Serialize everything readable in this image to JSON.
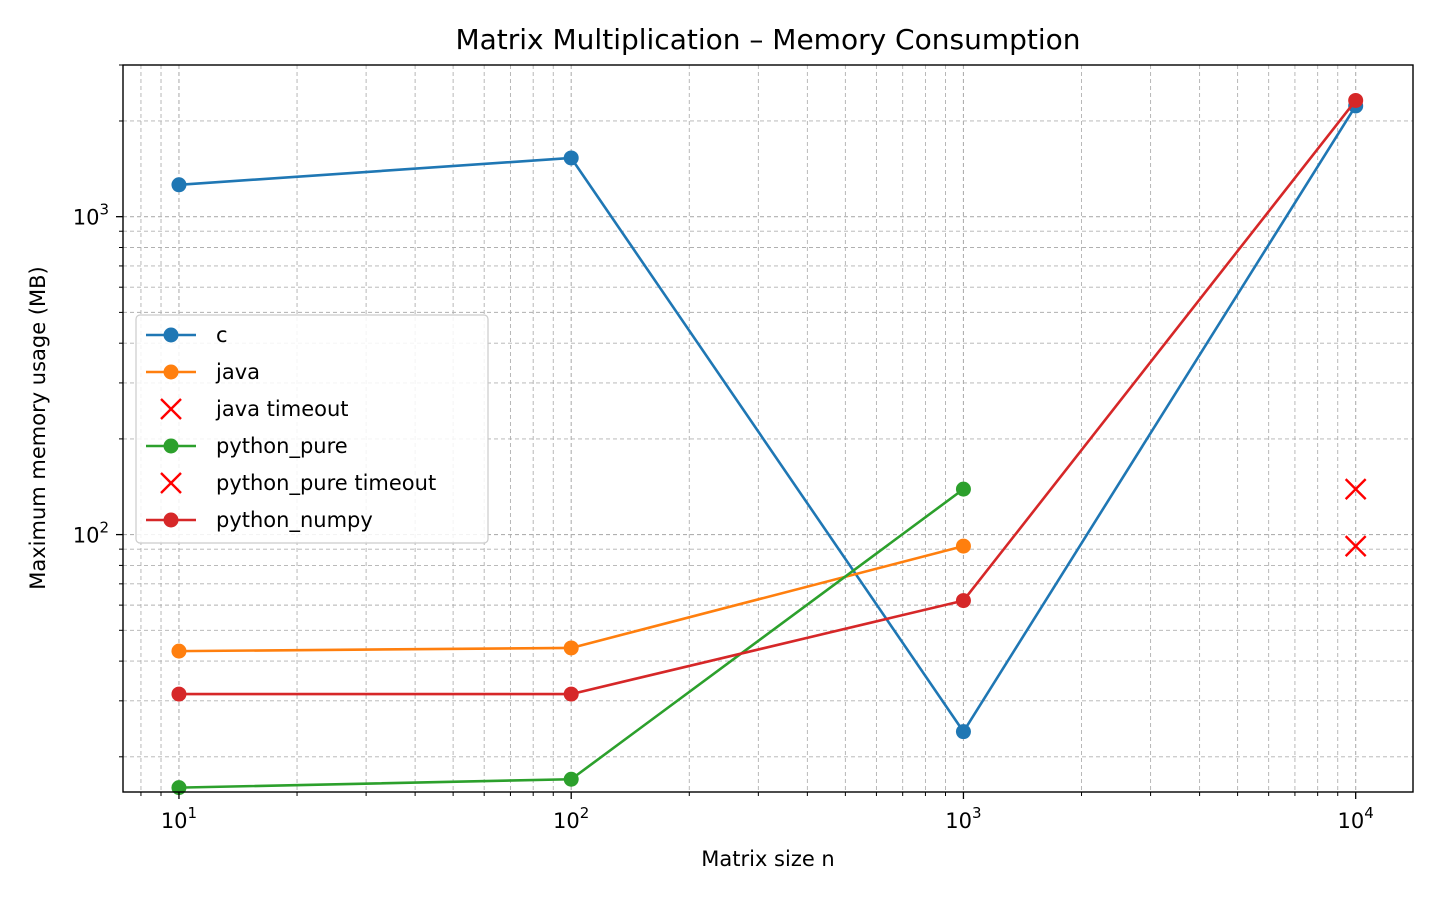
{
  "chart_data": {
    "type": "line",
    "title": "Matrix Multiplication – Memory Consumption",
    "xlabel": "Matrix size n",
    "ylabel": "Maximum memory usage (MB)",
    "x_scale": "log",
    "y_scale": "log",
    "xlim": [
      7.2,
      14000
    ],
    "ylim": [
      15.5,
      3000
    ],
    "grid": "both major and minor, dashed",
    "legend_position": "center-left",
    "x_ticks": [
      {
        "value": 10,
        "base": "10",
        "exp": "1"
      },
      {
        "value": 100,
        "base": "10",
        "exp": "2"
      },
      {
        "value": 1000,
        "base": "10",
        "exp": "3"
      },
      {
        "value": 10000,
        "base": "10",
        "exp": "4"
      }
    ],
    "y_ticks": [
      {
        "value": 100,
        "base": "10",
        "exp": "2"
      },
      {
        "value": 1000,
        "base": "10",
        "exp": "3"
      }
    ],
    "series": [
      {
        "name": "c",
        "kind": "line",
        "color": "#1f77b4",
        "x": [
          10,
          100,
          1000,
          10000
        ],
        "y": [
          1260,
          1530,
          24,
          2230
        ]
      },
      {
        "name": "java",
        "kind": "line",
        "color": "#ff7f0e",
        "x": [
          10,
          100,
          1000
        ],
        "y": [
          43,
          44,
          92
        ]
      },
      {
        "name": "java timeout",
        "kind": "timeout",
        "color": "#ff0000",
        "x": [
          10000
        ],
        "y": [
          92
        ]
      },
      {
        "name": "python_pure",
        "kind": "line",
        "color": "#2ca02c",
        "x": [
          10,
          100,
          1000
        ],
        "y": [
          16,
          17,
          139
        ]
      },
      {
        "name": "python_pure timeout",
        "kind": "timeout",
        "color": "#ff0000",
        "x": [
          10000
        ],
        "y": [
          139
        ]
      },
      {
        "name": "python_numpy",
        "kind": "line",
        "color": "#d62728",
        "x": [
          10,
          100,
          1000,
          10000
        ],
        "y": [
          31.5,
          31.5,
          62,
          2320
        ]
      }
    ]
  }
}
